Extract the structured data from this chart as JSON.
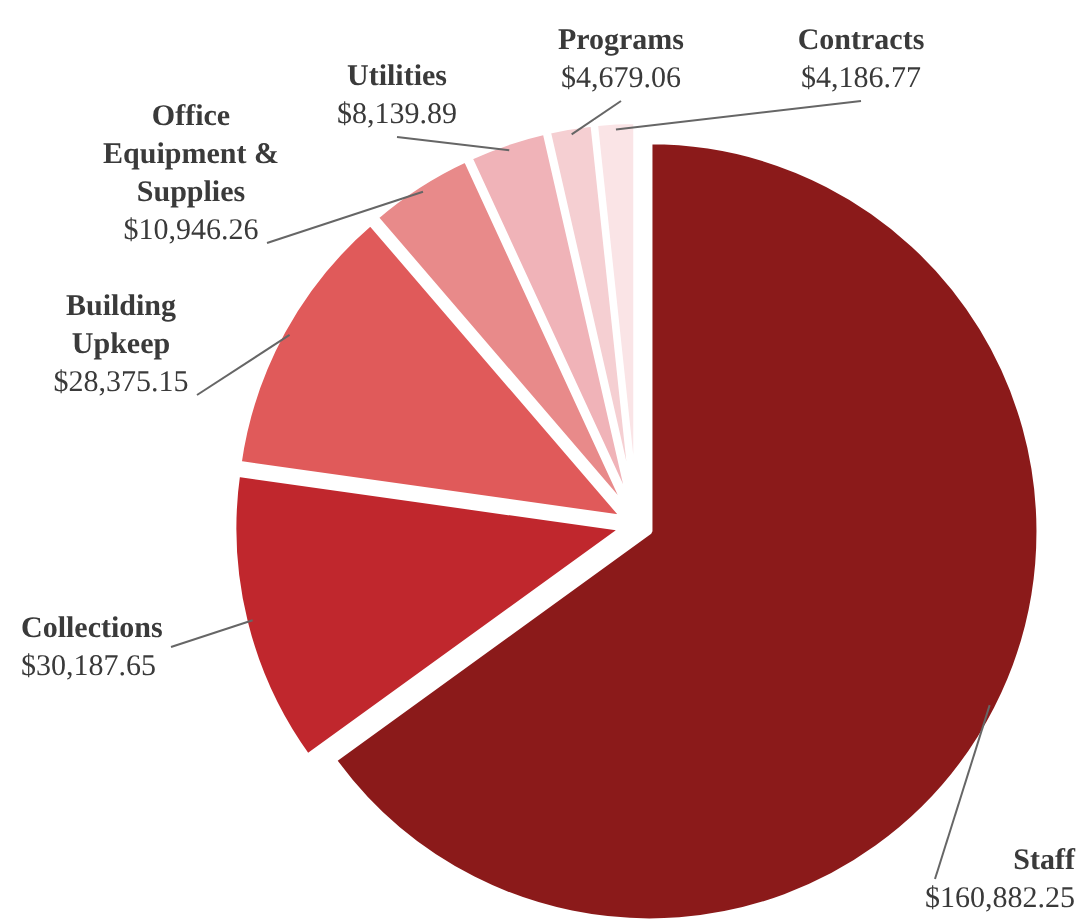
{
  "chart_data": {
    "type": "pie",
    "categories": [
      "Staff",
      "Collections",
      "Building Upkeep",
      "Office Equipment & Supplies",
      "Utilities",
      "Programs",
      "Contracts"
    ],
    "values": [
      160882.25,
      30187.65,
      28375.15,
      10946.26,
      8139.89,
      4679.06,
      4186.77
    ],
    "colors": [
      "#8b1a1a",
      "#c0272d",
      "#e05a5a",
      "#e88a8a",
      "#f0b3b8",
      "#f5cfd2",
      "#fae4e6"
    ],
    "value_labels": [
      "$160,882.25",
      "$30,187.65",
      "$28,375.15",
      "$10,946.26",
      "$8,139.89",
      "$4,679.06",
      "$4,186.77"
    ]
  }
}
